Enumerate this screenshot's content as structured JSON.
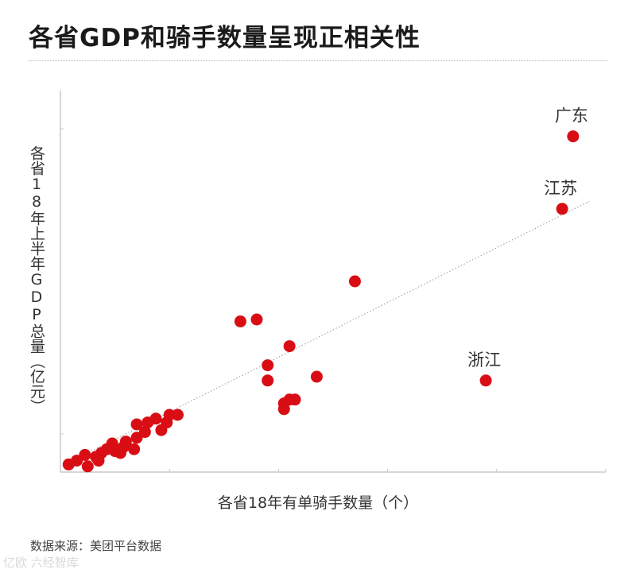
{
  "title": "各省GDP和骑手数量呈现正相关性",
  "source": "数据来源：美团平台数据",
  "watermark": "亿欧 六经智库",
  "colors": {
    "point": "#d90e15",
    "axis": "#c8c8c8",
    "trend": "#999999",
    "label": "#333333"
  },
  "chart_data": {
    "type": "scatter",
    "title": "各省GDP和骑手数量呈现正相关性",
    "xlabel": "各省18年有单骑手数量（个）",
    "ylabel": "各省18年上半年GDP总量（亿元）",
    "xlim": [
      0,
      100
    ],
    "ylim": [
      0,
      100
    ],
    "grid": false,
    "trendline": {
      "type": "linear",
      "from": [
        1.5,
        2.5
      ],
      "to": [
        97,
        71
      ]
    },
    "points": [
      {
        "label": "广东",
        "x": 94,
        "y": 88
      },
      {
        "label": "江苏",
        "x": 92,
        "y": 69
      },
      {
        "label": "浙江",
        "x": 78,
        "y": 24
      },
      {
        "x": 54,
        "y": 50
      },
      {
        "x": 33,
        "y": 39.5
      },
      {
        "x": 36,
        "y": 40
      },
      {
        "x": 42,
        "y": 33
      },
      {
        "x": 38,
        "y": 28
      },
      {
        "x": 38,
        "y": 24
      },
      {
        "x": 47,
        "y": 25
      },
      {
        "x": 42,
        "y": 19
      },
      {
        "x": 43,
        "y": 19
      },
      {
        "x": 41,
        "y": 18
      },
      {
        "x": 41,
        "y": 16.5
      },
      {
        "x": 21.5,
        "y": 15
      },
      {
        "x": 20,
        "y": 15
      },
      {
        "x": 17.5,
        "y": 14
      },
      {
        "x": 19.5,
        "y": 13
      },
      {
        "x": 16,
        "y": 13
      },
      {
        "x": 14,
        "y": 12.5
      },
      {
        "x": 18.5,
        "y": 11
      },
      {
        "x": 15.5,
        "y": 10.5
      },
      {
        "x": 14,
        "y": 9
      },
      {
        "x": 12,
        "y": 8
      },
      {
        "x": 13.5,
        "y": 6
      },
      {
        "x": 9.5,
        "y": 7.5
      },
      {
        "x": 11.5,
        "y": 6.5
      },
      {
        "x": 10,
        "y": 5.5
      },
      {
        "x": 8.5,
        "y": 6
      },
      {
        "x": 11,
        "y": 5
      },
      {
        "x": 7.5,
        "y": 5
      },
      {
        "x": 6.5,
        "y": 4
      },
      {
        "x": 4.5,
        "y": 4.5
      },
      {
        "x": 7,
        "y": 3
      },
      {
        "x": 3,
        "y": 3
      },
      {
        "x": 1.5,
        "y": 2
      },
      {
        "x": 5,
        "y": 1.5
      }
    ]
  }
}
